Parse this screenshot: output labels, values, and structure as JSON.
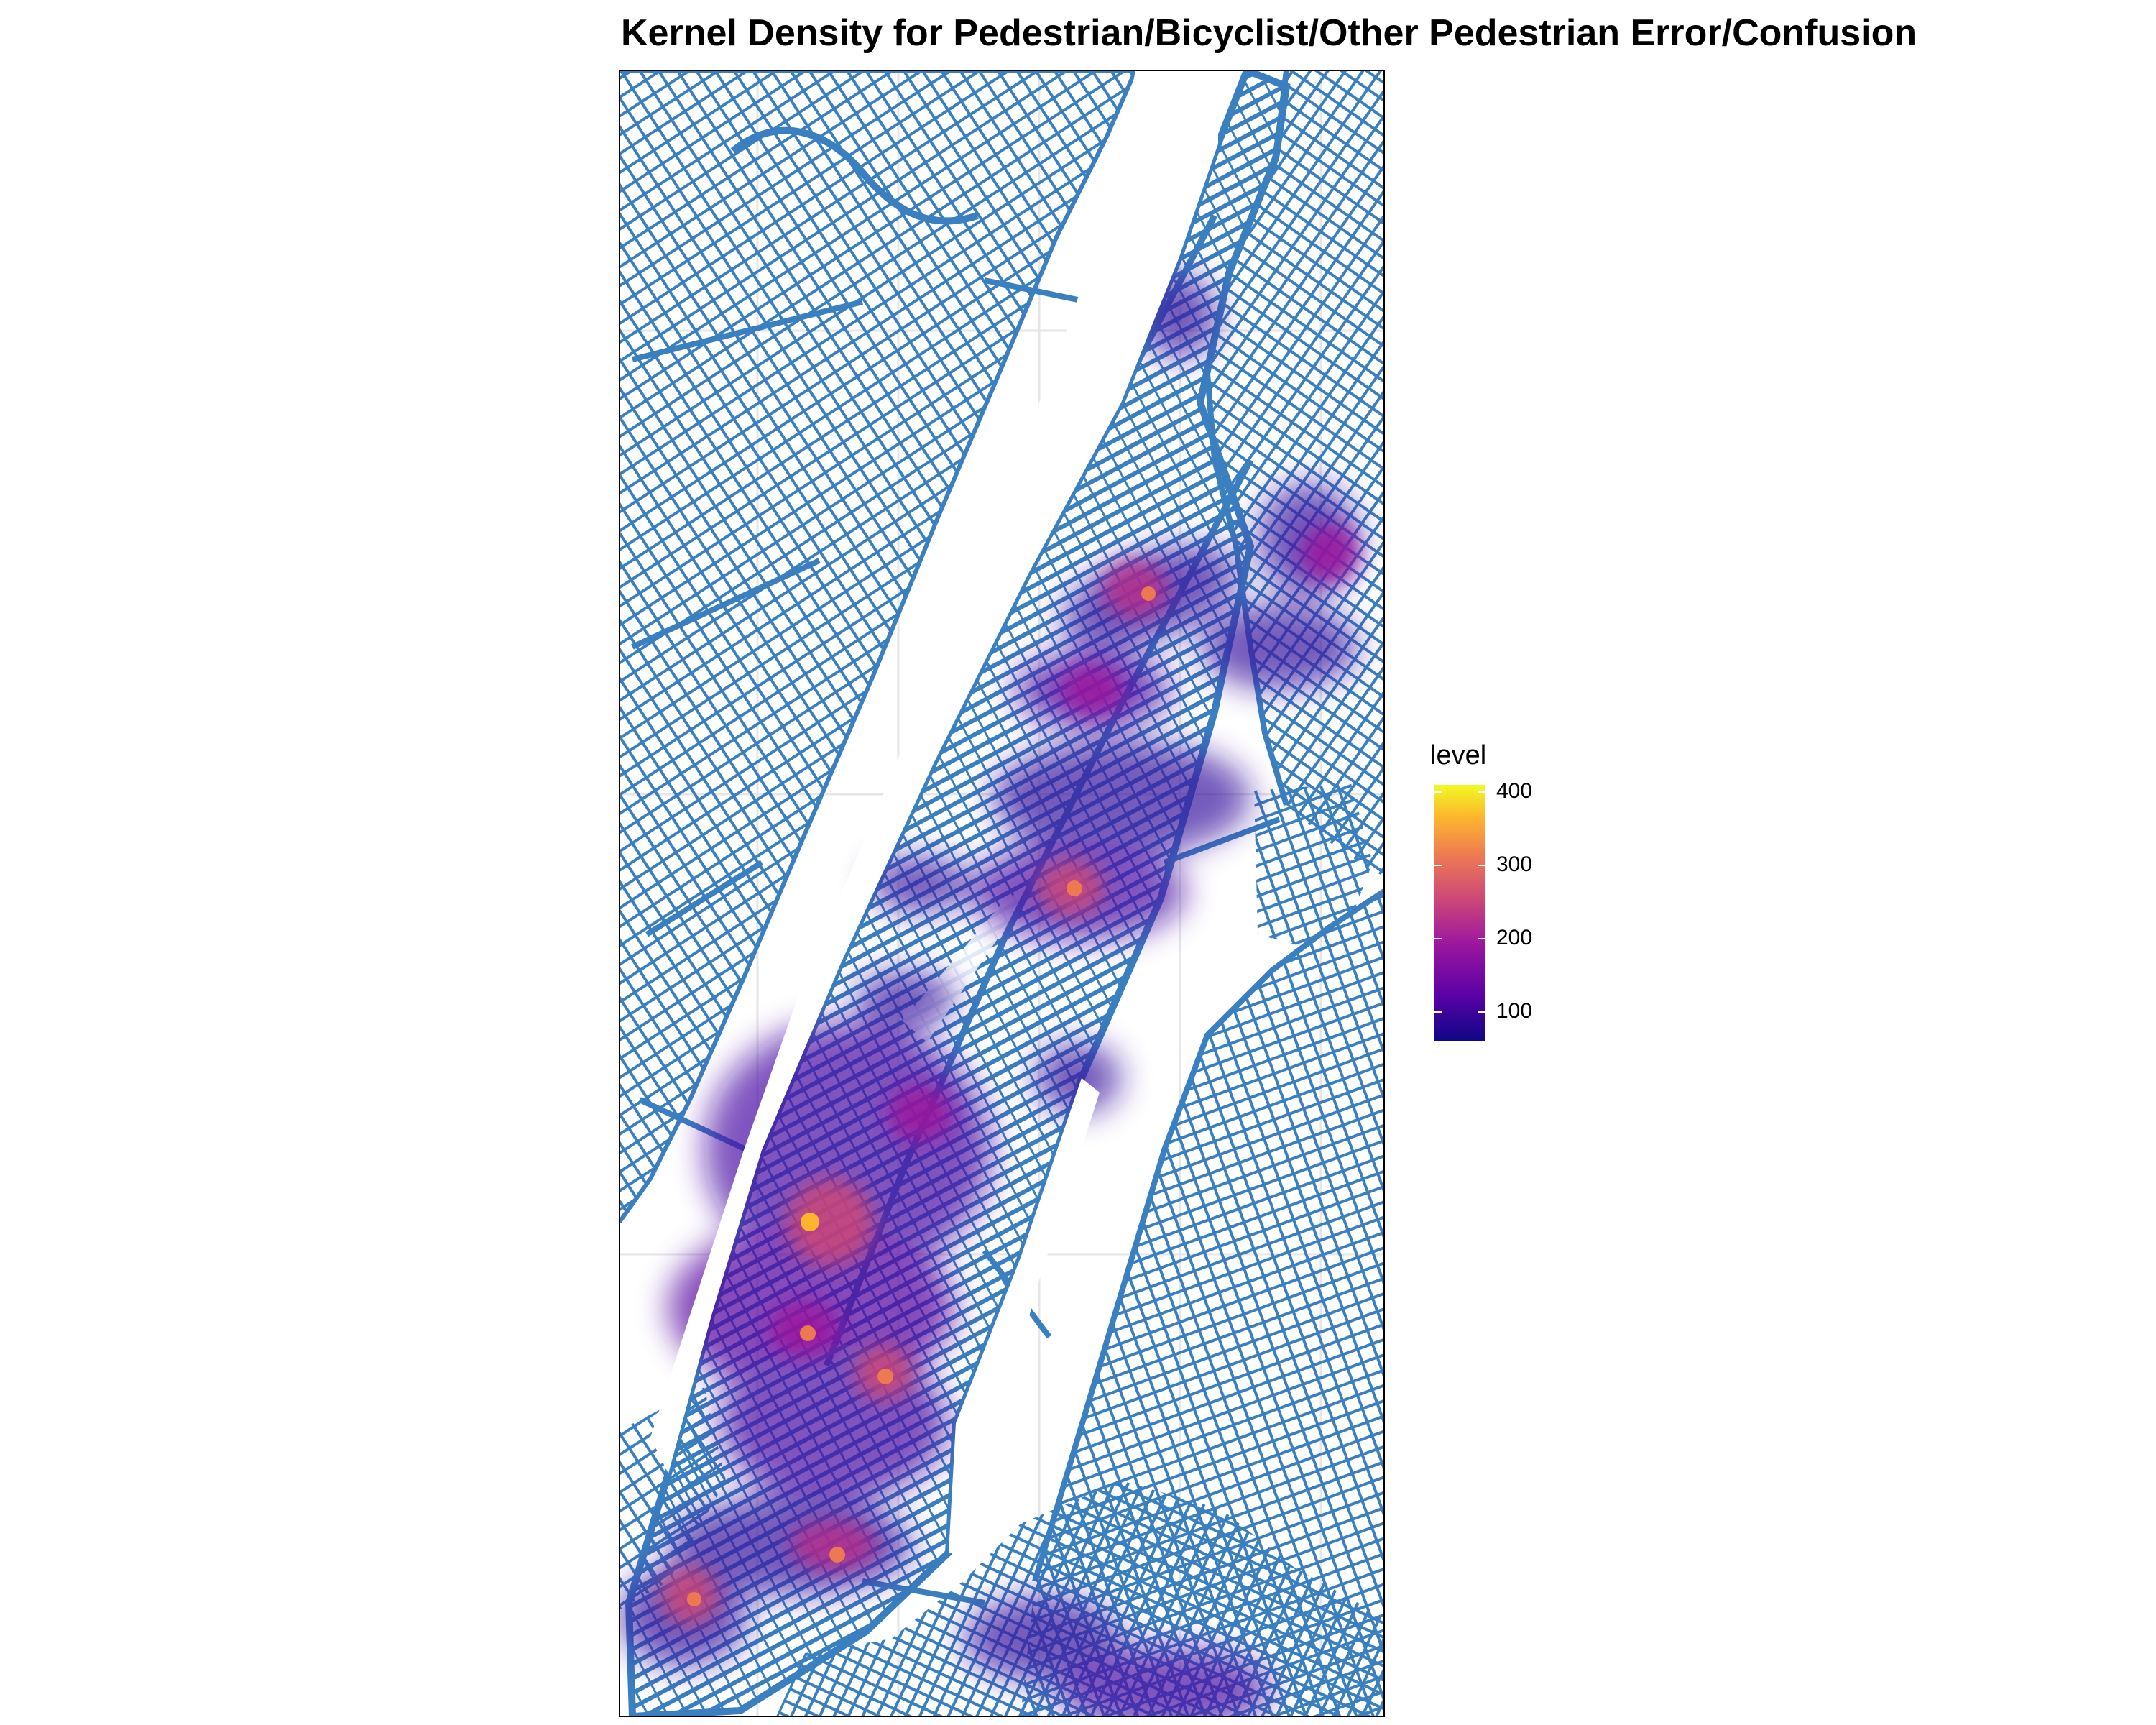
{
  "map": {
    "title": "Kernel Density for Pedestrian/Bicyclist/Other Pedestrian Error/Confusion",
    "road_color": "#3a7fbf",
    "water_color": "#ffffff",
    "grid_color": "#e6e6e6",
    "density_colormap": "plasma"
  },
  "legend": {
    "title": "level",
    "range": [
      40,
      400
    ],
    "ticks": [
      {
        "label": "400",
        "value": 400
      },
      {
        "label": "300",
        "value": 300
      },
      {
        "label": "200",
        "value": 200
      },
      {
        "label": "100",
        "value": 100
      }
    ]
  }
}
